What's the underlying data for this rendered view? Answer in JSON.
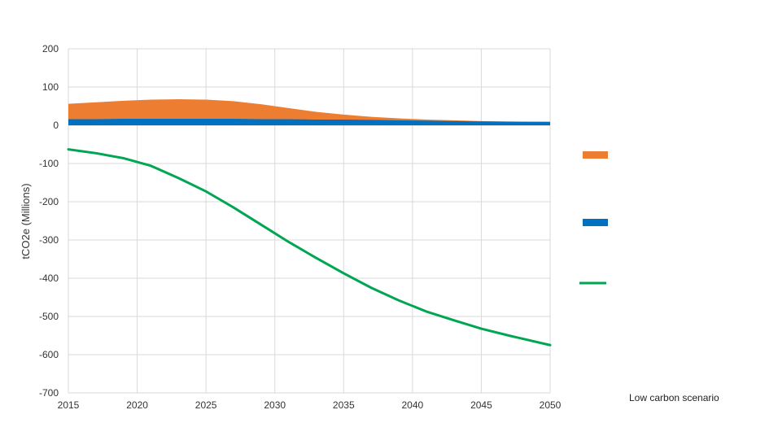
{
  "chart_data": {
    "type": "area",
    "title": "",
    "xlabel": "",
    "ylabel": "tCO2e (Millions)",
    "annotation": "Low carbon scenario",
    "xlim": [
      2015,
      2050
    ],
    "ylim": [
      -700,
      200
    ],
    "x_ticks": [
      "2015",
      "2020",
      "2025",
      "2030",
      "2035",
      "2040",
      "2045",
      "2050"
    ],
    "y_ticks": [
      "200",
      "100",
      "0",
      "-100",
      "-200",
      "-300",
      "-400",
      "-500",
      "-600",
      "-700"
    ],
    "grid": true,
    "legend_position": "right",
    "x": [
      2015,
      2017,
      2019,
      2021,
      2023,
      2025,
      2027,
      2029,
      2031,
      2033,
      2035,
      2037,
      2039,
      2041,
      2043,
      2045,
      2047,
      2050
    ],
    "series": [
      {
        "color": "#ED7D31",
        "kind": "area",
        "values": [
          56,
          60,
          64,
          67,
          68,
          67,
          63,
          55,
          45,
          35,
          28,
          22,
          18,
          15,
          13,
          11,
          10,
          9
        ]
      },
      {
        "color": "#0070C0",
        "kind": "area",
        "values": [
          16,
          16,
          17,
          17,
          17,
          17,
          17,
          16,
          16,
          15,
          15,
          14,
          13,
          12,
          11,
          10,
          9,
          9
        ]
      },
      {
        "color": "#00A651",
        "kind": "line",
        "values": [
          -63,
          -73,
          -86,
          -106,
          -138,
          -173,
          -215,
          -260,
          -305,
          -347,
          -387,
          -425,
          -458,
          -487,
          -510,
          -532,
          -550,
          -575
        ]
      }
    ]
  }
}
